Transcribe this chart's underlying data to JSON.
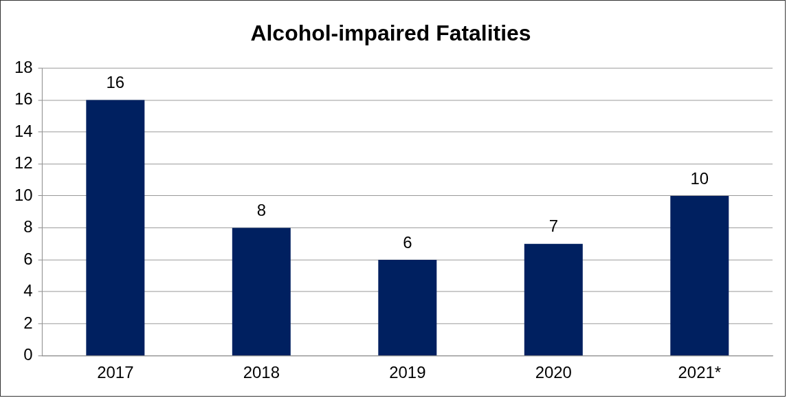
{
  "chart_data": {
    "type": "bar",
    "title": "Alcohol-impaired Fatalities",
    "categories": [
      "2017",
      "2018",
      "2019",
      "2020",
      "2021*"
    ],
    "values": [
      16,
      8,
      6,
      7,
      10
    ],
    "color": "#002060",
    "ylim": [
      0,
      18
    ],
    "yticks": [
      0,
      2,
      4,
      6,
      8,
      10,
      12,
      14,
      16,
      18
    ],
    "grid": "y",
    "data_labels": true,
    "legend": false
  }
}
